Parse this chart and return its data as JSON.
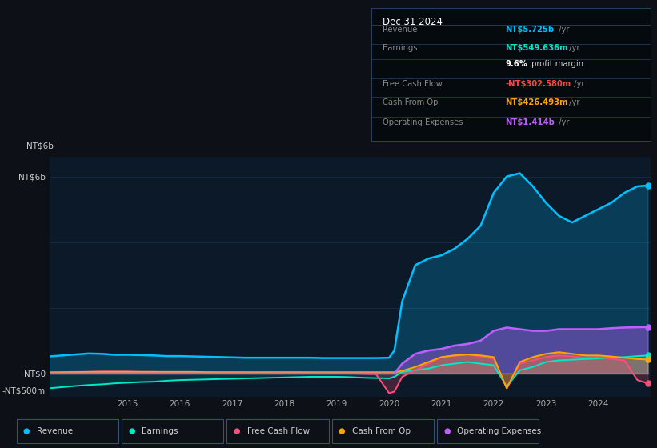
{
  "bg_color": "#0d1117",
  "plot_bg_color": "#0c1929",
  "info_box_bg": "#050a0f",
  "years_x": [
    2013.5,
    2014.0,
    2014.25,
    2014.5,
    2014.75,
    2015.0,
    2015.25,
    2015.5,
    2015.75,
    2016.0,
    2016.25,
    2016.5,
    2016.75,
    2017.0,
    2017.25,
    2017.5,
    2017.75,
    2018.0,
    2018.25,
    2018.5,
    2018.75,
    2019.0,
    2019.25,
    2019.5,
    2019.75,
    2020.0,
    2020.1,
    2020.25,
    2020.5,
    2020.75,
    2021.0,
    2021.25,
    2021.5,
    2021.75,
    2022.0,
    2022.25,
    2022.5,
    2022.75,
    2023.0,
    2023.25,
    2023.5,
    2023.75,
    2024.0,
    2024.25,
    2024.5,
    2024.75,
    2024.95
  ],
  "revenue": [
    0.52,
    0.58,
    0.61,
    0.6,
    0.57,
    0.57,
    0.56,
    0.55,
    0.53,
    0.53,
    0.52,
    0.51,
    0.5,
    0.49,
    0.48,
    0.48,
    0.48,
    0.48,
    0.48,
    0.48,
    0.47,
    0.47,
    0.47,
    0.47,
    0.47,
    0.48,
    0.7,
    2.2,
    3.3,
    3.5,
    3.6,
    3.8,
    4.1,
    4.5,
    5.5,
    6.0,
    6.1,
    5.7,
    5.2,
    4.8,
    4.6,
    4.8,
    5.0,
    5.2,
    5.5,
    5.7,
    5.725
  ],
  "earnings": [
    -0.45,
    -0.38,
    -0.35,
    -0.33,
    -0.3,
    -0.28,
    -0.26,
    -0.25,
    -0.22,
    -0.2,
    -0.19,
    -0.18,
    -0.17,
    -0.16,
    -0.15,
    -0.14,
    -0.13,
    -0.12,
    -0.11,
    -0.1,
    -0.1,
    -0.1,
    -0.11,
    -0.13,
    -0.14,
    -0.15,
    -0.1,
    0.05,
    0.1,
    0.15,
    0.25,
    0.3,
    0.35,
    0.3,
    0.25,
    -0.4,
    0.1,
    0.2,
    0.35,
    0.4,
    0.42,
    0.44,
    0.46,
    0.48,
    0.5,
    0.53,
    0.5496
  ],
  "free_cash_flow": [
    0.04,
    0.05,
    0.05,
    0.06,
    0.06,
    0.06,
    0.05,
    0.05,
    0.04,
    0.04,
    0.04,
    0.04,
    0.03,
    0.03,
    0.03,
    0.03,
    0.03,
    0.03,
    0.03,
    0.02,
    0.02,
    0.01,
    0.0,
    -0.01,
    -0.02,
    -0.6,
    -0.55,
    -0.1,
    0.1,
    0.3,
    0.5,
    0.55,
    0.58,
    0.52,
    0.45,
    -0.45,
    0.3,
    0.4,
    0.5,
    0.55,
    0.52,
    0.48,
    0.5,
    0.45,
    0.4,
    -0.2,
    -0.3026
  ],
  "cash_from_op": [
    0.03,
    0.04,
    0.05,
    0.05,
    0.05,
    0.05,
    0.05,
    0.05,
    0.05,
    0.05,
    0.05,
    0.04,
    0.04,
    0.04,
    0.04,
    0.04,
    0.04,
    0.04,
    0.04,
    0.04,
    0.04,
    0.04,
    0.04,
    0.04,
    0.04,
    0.04,
    0.04,
    0.08,
    0.2,
    0.35,
    0.5,
    0.55,
    0.58,
    0.55,
    0.5,
    -0.45,
    0.35,
    0.5,
    0.6,
    0.65,
    0.6,
    0.55,
    0.55,
    0.52,
    0.48,
    0.44,
    0.4265
  ],
  "op_expenses": [
    0.0,
    0.0,
    0.0,
    0.0,
    0.0,
    0.0,
    0.0,
    0.0,
    0.0,
    0.0,
    0.0,
    0.0,
    0.0,
    0.0,
    0.0,
    0.0,
    0.0,
    0.0,
    0.0,
    0.0,
    0.0,
    0.0,
    0.0,
    0.0,
    0.0,
    0.0,
    0.0,
    0.3,
    0.6,
    0.7,
    0.75,
    0.85,
    0.9,
    1.0,
    1.3,
    1.4,
    1.35,
    1.3,
    1.3,
    1.35,
    1.35,
    1.35,
    1.35,
    1.38,
    1.4,
    1.41,
    1.414
  ],
  "revenue_color": "#00bfff",
  "earnings_color": "#00e8c8",
  "fcf_color": "#ff4d78",
  "cashop_color": "#ffa500",
  "opex_color": "#bf5fff",
  "ylim_min": -0.7,
  "ylim_max": 6.6,
  "yticks": [
    -0.5,
    0.0,
    6.0
  ],
  "ytick_labels": [
    "-NT$500m",
    "NT$0",
    "NT$6b"
  ],
  "xticks": [
    2015,
    2016,
    2017,
    2018,
    2019,
    2020,
    2021,
    2022,
    2023,
    2024
  ],
  "info_box": {
    "title": "Dec 31 2024",
    "rows": [
      {
        "label": "Revenue",
        "value": "NT$5.725b",
        "suffix": " /yr",
        "value_color": "#00bfff"
      },
      {
        "label": "Earnings",
        "value": "NT$549.636m",
        "suffix": " /yr",
        "value_color": "#00e8c8"
      },
      {
        "label": "",
        "value": "9.6%",
        "suffix": " profit margin",
        "value_color": "#ffffff",
        "suffix_color": "#cccccc"
      },
      {
        "label": "Free Cash Flow",
        "value": "-NT$302.580m",
        "suffix": " /yr",
        "value_color": "#ff4444"
      },
      {
        "label": "Cash From Op",
        "value": "NT$426.493m",
        "suffix": " /yr",
        "value_color": "#ffa500"
      },
      {
        "label": "Operating Expenses",
        "value": "NT$1.414b",
        "suffix": " /yr",
        "value_color": "#bf5fff"
      }
    ]
  },
  "legend_items": [
    {
      "label": "Revenue",
      "color": "#00bfff"
    },
    {
      "label": "Earnings",
      "color": "#00e8c8"
    },
    {
      "label": "Free Cash Flow",
      "color": "#ff4d78"
    },
    {
      "label": "Cash From Op",
      "color": "#ffa500"
    },
    {
      "label": "Operating Expenses",
      "color": "#bf5fff"
    }
  ]
}
